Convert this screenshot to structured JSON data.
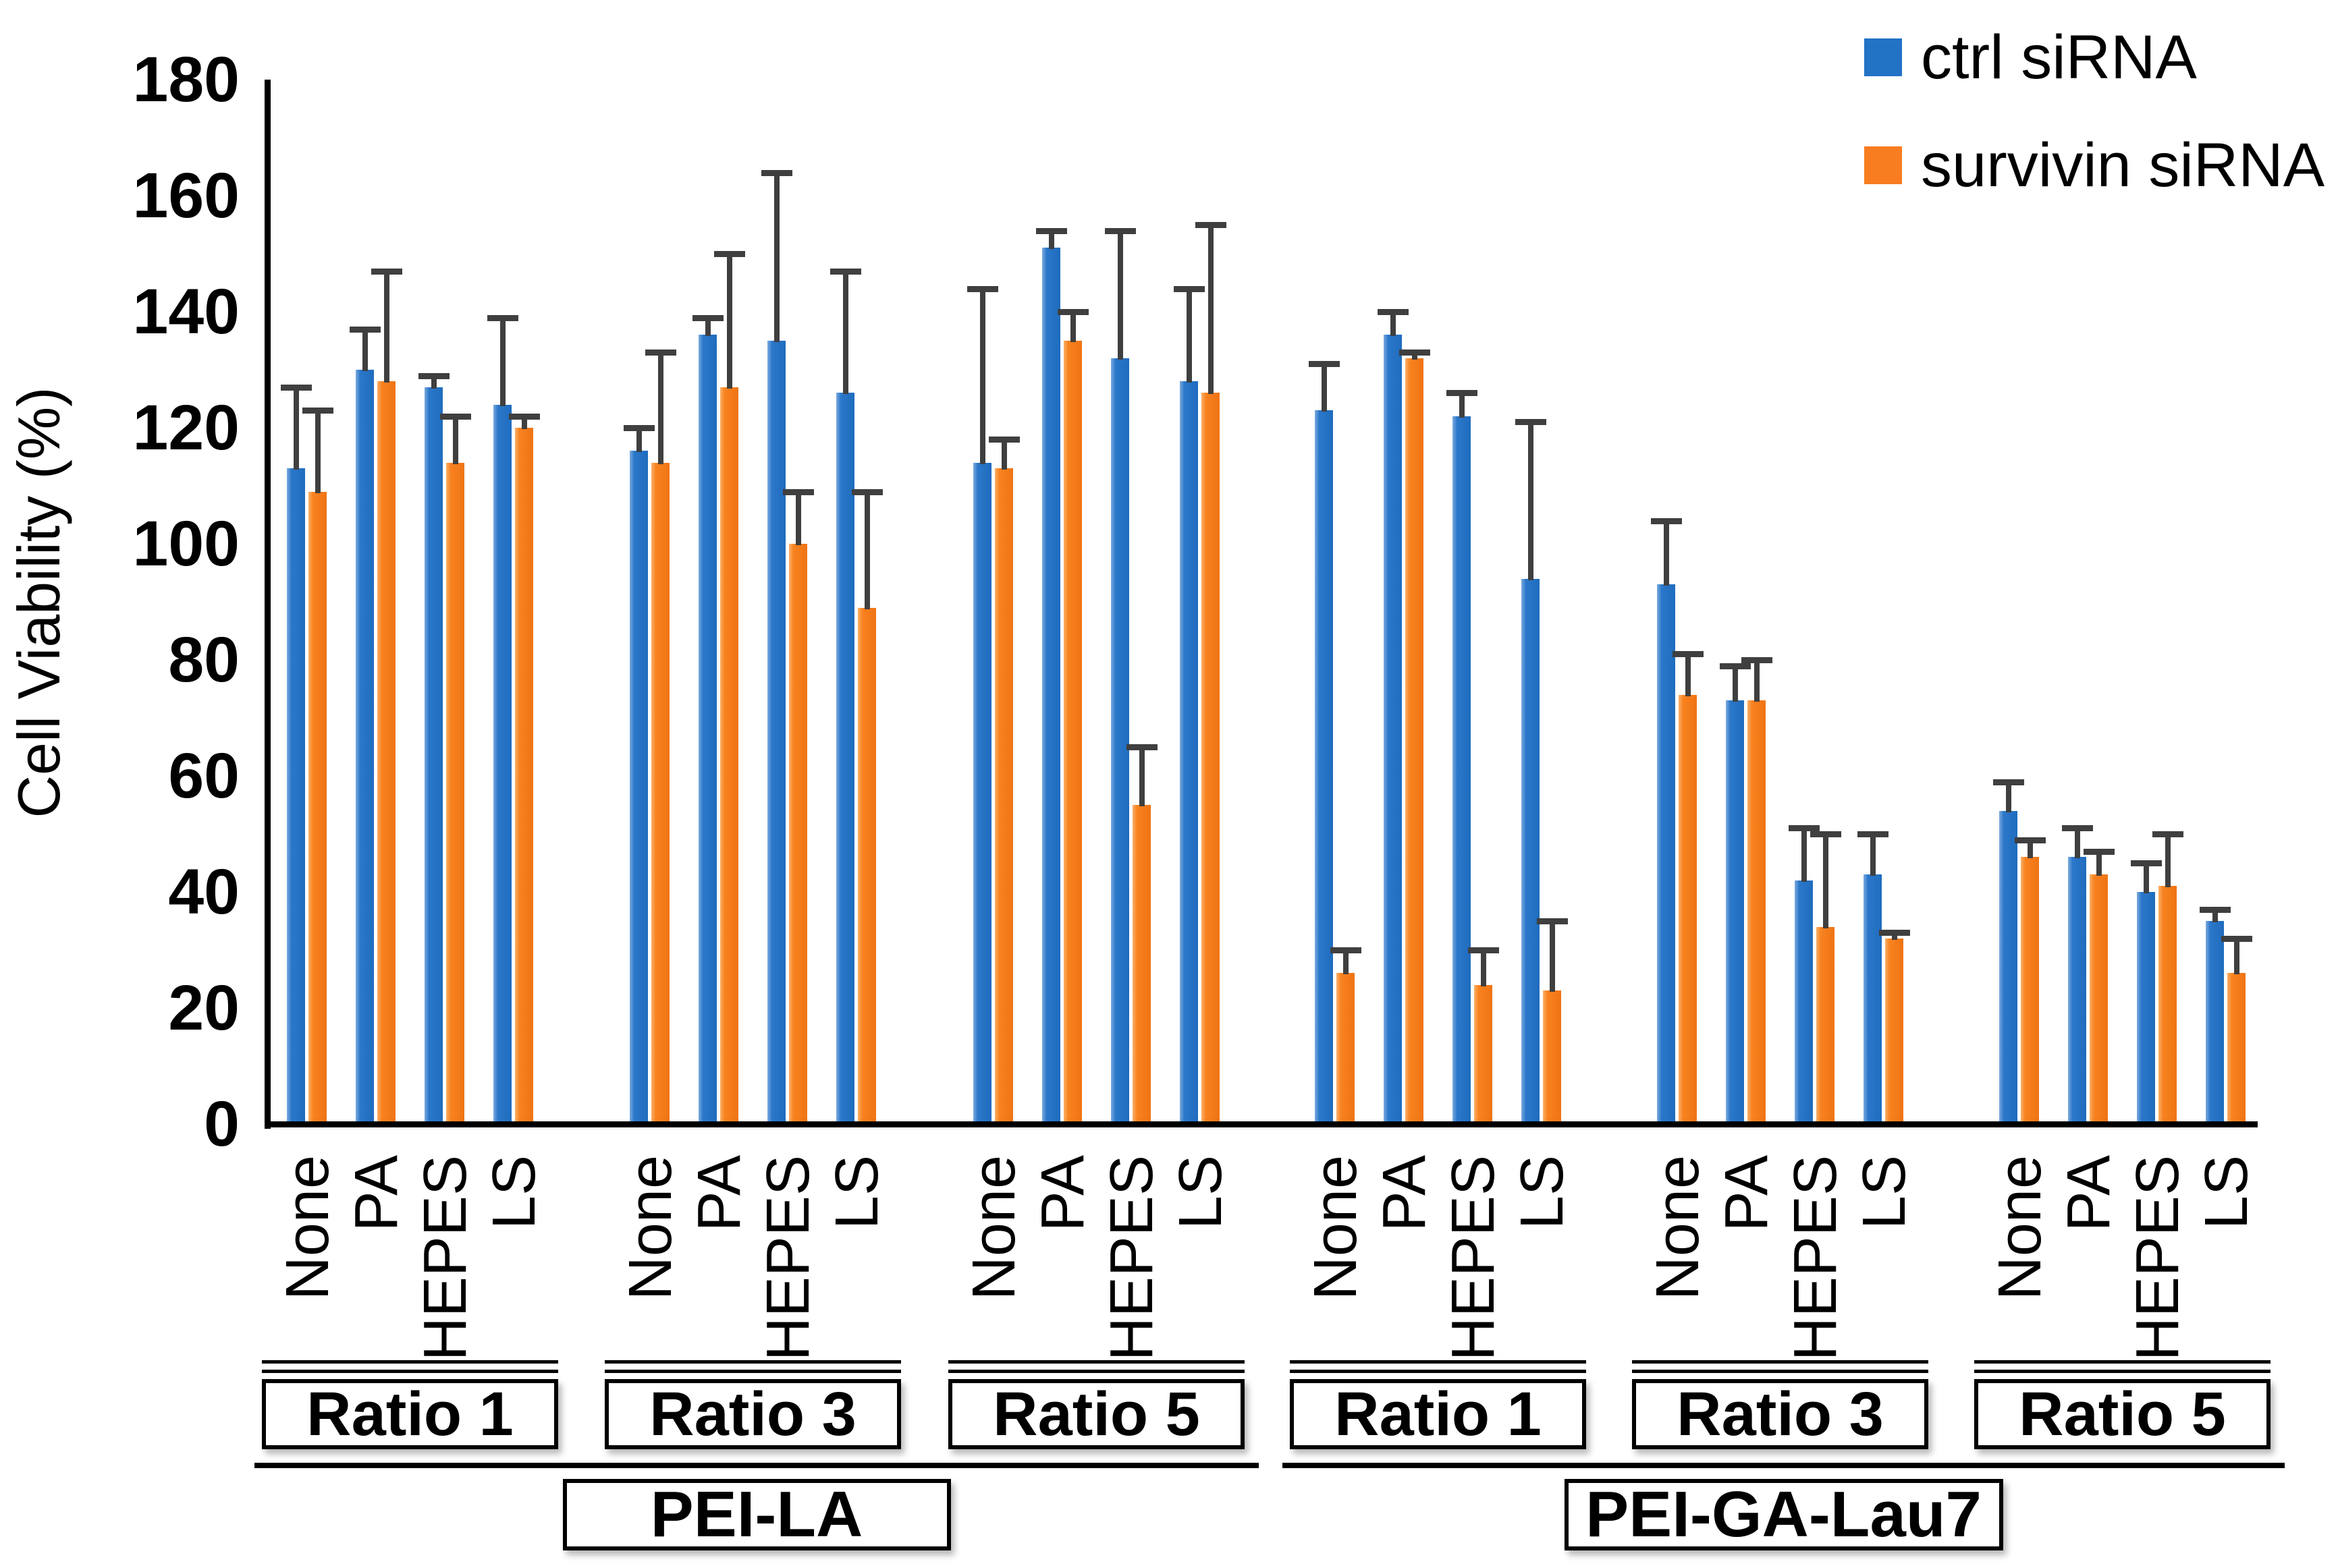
{
  "chart_data": {
    "type": "bar",
    "title": "",
    "ylabel": "Cell Viability (%)",
    "ylim": [
      0,
      180
    ],
    "yticks": [
      0,
      20,
      40,
      60,
      80,
      100,
      120,
      140,
      160,
      180
    ],
    "grid": false,
    "legend_position": "top-right",
    "error_bars": "upper, plus caps",
    "colors": {
      "ctrl": "#2272C6",
      "survivin": "#F87D20",
      "error_bar": "#3F3F3F",
      "axis": "#000000"
    },
    "legend": [
      {
        "name": "ctrl siRNA",
        "color": "#2272C6"
      },
      {
        "name": "survivin siRNA",
        "color": "#F87D20"
      }
    ],
    "conditions": [
      "None",
      "PA",
      "HEPES",
      "LS"
    ],
    "sections": [
      {
        "label": "PEI-LA",
        "ratios": [
          {
            "label": "Ratio 1",
            "points": [
              {
                "condition": "None",
                "ctrl": 113,
                "ctrl_err": 14,
                "survivin": 109,
                "survivin_err": 14
              },
              {
                "condition": "PA",
                "ctrl": 130,
                "ctrl_err": 7,
                "survivin": 128,
                "survivin_err": 19
              },
              {
                "condition": "HEPES",
                "ctrl": 127,
                "ctrl_err": 2,
                "survivin": 114,
                "survivin_err": 8
              },
              {
                "condition": "LS",
                "ctrl": 124,
                "ctrl_err": 15,
                "survivin": 120,
                "survivin_err": 2
              }
            ]
          },
          {
            "label": "Ratio 3",
            "points": [
              {
                "condition": "None",
                "ctrl": 116,
                "ctrl_err": 4,
                "survivin": 114,
                "survivin_err": 19
              },
              {
                "condition": "PA",
                "ctrl": 136,
                "ctrl_err": 3,
                "survivin": 127,
                "survivin_err": 23
              },
              {
                "condition": "HEPES",
                "ctrl": 135,
                "ctrl_err": 29,
                "survivin": 100,
                "survivin_err": 9
              },
              {
                "condition": "LS",
                "ctrl": 126,
                "ctrl_err": 21,
                "survivin": 89,
                "survivin_err": 20
              }
            ]
          },
          {
            "label": "Ratio 5",
            "points": [
              {
                "condition": "None",
                "ctrl": 114,
                "ctrl_err": 30,
                "survivin": 113,
                "survivin_err": 5
              },
              {
                "condition": "PA",
                "ctrl": 151,
                "ctrl_err": 3,
                "survivin": 135,
                "survivin_err": 5
              },
              {
                "condition": "HEPES",
                "ctrl": 132,
                "ctrl_err": 22,
                "survivin": 55,
                "survivin_err": 10
              },
              {
                "condition": "LS",
                "ctrl": 128,
                "ctrl_err": 16,
                "survivin": 126,
                "survivin_err": 29
              }
            ]
          }
        ]
      },
      {
        "label": "PEI-GA-Lau7",
        "ratios": [
          {
            "label": "Ratio 1",
            "points": [
              {
                "condition": "None",
                "ctrl": 123,
                "ctrl_err": 8,
                "survivin": 26,
                "survivin_err": 4
              },
              {
                "condition": "PA",
                "ctrl": 136,
                "ctrl_err": 4,
                "survivin": 132,
                "survivin_err": 1
              },
              {
                "condition": "HEPES",
                "ctrl": 122,
                "ctrl_err": 4,
                "survivin": 24,
                "survivin_err": 6
              },
              {
                "condition": "LS",
                "ctrl": 94,
                "ctrl_err": 27,
                "survivin": 23,
                "survivin_err": 12
              }
            ]
          },
          {
            "label": "Ratio 3",
            "points": [
              {
                "condition": "None",
                "ctrl": 93,
                "ctrl_err": 11,
                "survivin": 74,
                "survivin_err": 7
              },
              {
                "condition": "PA",
                "ctrl": 73,
                "ctrl_err": 6,
                "survivin": 73,
                "survivin_err": 7
              },
              {
                "condition": "HEPES",
                "ctrl": 42,
                "ctrl_err": 9,
                "survivin": 34,
                "survivin_err": 16
              },
              {
                "condition": "LS",
                "ctrl": 43,
                "ctrl_err": 7,
                "survivin": 32,
                "survivin_err": 1
              }
            ]
          },
          {
            "label": "Ratio 5",
            "points": [
              {
                "condition": "None",
                "ctrl": 54,
                "ctrl_err": 5,
                "survivin": 46,
                "survivin_err": 3
              },
              {
                "condition": "PA",
                "ctrl": 46,
                "ctrl_err": 5,
                "survivin": 43,
                "survivin_err": 4
              },
              {
                "condition": "HEPES",
                "ctrl": 40,
                "ctrl_err": 5,
                "survivin": 41,
                "survivin_err": 9
              },
              {
                "condition": "LS",
                "ctrl": 35,
                "ctrl_err": 2,
                "survivin": 26,
                "survivin_err": 6
              }
            ]
          }
        ]
      }
    ]
  }
}
